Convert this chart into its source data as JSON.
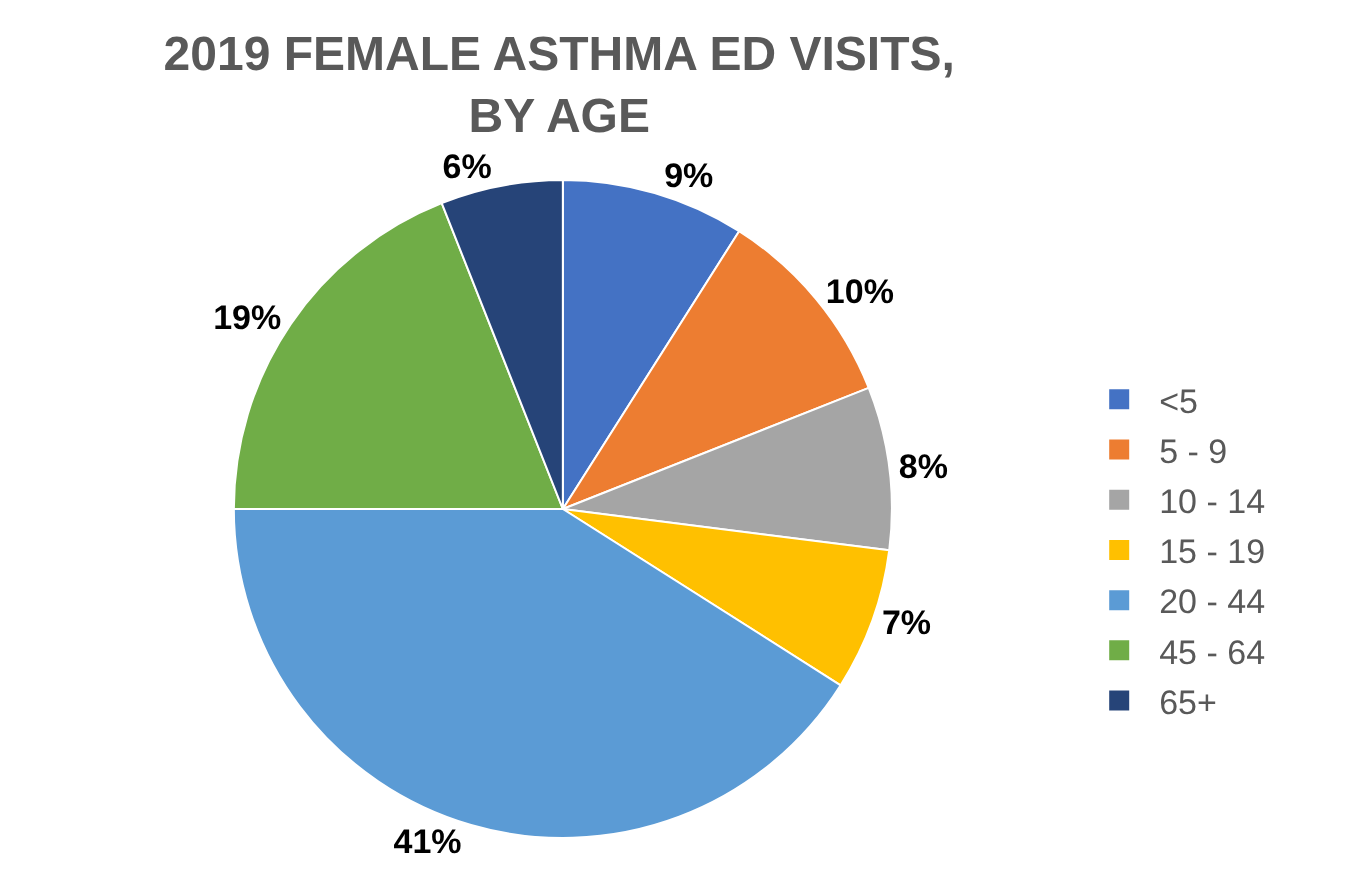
{
  "chart_data": {
    "type": "pie",
    "title": "2019 FEMALE ASTHMA ED VISITS, BY AGE",
    "categories": [
      "<5",
      "5 - 9",
      "10 - 14",
      "15 - 19",
      "20 - 44",
      "45 - 64",
      "65+"
    ],
    "values": [
      9,
      10,
      8,
      7,
      41,
      19,
      6
    ],
    "value_labels": [
      "9%",
      "10%",
      "8%",
      "7%",
      "41%",
      "19%",
      "6%"
    ],
    "colors": [
      "#4472c4",
      "#ed7d31",
      "#a5a5a5",
      "#ffc000",
      "#5b9bd5",
      "#70ad47",
      "#264478"
    ],
    "legend": "right"
  }
}
